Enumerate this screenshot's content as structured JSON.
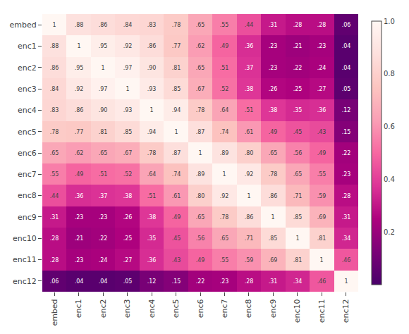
{
  "chart_data": {
    "type": "heatmap",
    "categories": [
      "embed",
      "enc1",
      "enc2",
      "enc3",
      "enc4",
      "enc5",
      "enc6",
      "enc7",
      "enc8",
      "enc9",
      "enc10",
      "enc11",
      "enc12"
    ],
    "values": [
      [
        1.0,
        0.88,
        0.86,
        0.84,
        0.83,
        0.78,
        0.65,
        0.55,
        0.44,
        0.31,
        0.28,
        0.28,
        0.06
      ],
      [
        0.88,
        1.0,
        0.95,
        0.92,
        0.86,
        0.77,
        0.62,
        0.49,
        0.36,
        0.23,
        0.21,
        0.23,
        0.04
      ],
      [
        0.86,
        0.95,
        1.0,
        0.97,
        0.9,
        0.81,
        0.65,
        0.51,
        0.37,
        0.23,
        0.22,
        0.24,
        0.04
      ],
      [
        0.84,
        0.92,
        0.97,
        1.0,
        0.93,
        0.85,
        0.67,
        0.52,
        0.38,
        0.26,
        0.25,
        0.27,
        0.05
      ],
      [
        0.83,
        0.86,
        0.9,
        0.93,
        1.0,
        0.94,
        0.78,
        0.64,
        0.51,
        0.38,
        0.35,
        0.36,
        0.12
      ],
      [
        0.78,
        0.77,
        0.81,
        0.85,
        0.94,
        1.0,
        0.87,
        0.74,
        0.61,
        0.49,
        0.45,
        0.43,
        0.15
      ],
      [
        0.65,
        0.62,
        0.65,
        0.67,
        0.78,
        0.87,
        1.0,
        0.89,
        0.8,
        0.65,
        0.56,
        0.49,
        0.22
      ],
      [
        0.55,
        0.49,
        0.51,
        0.52,
        0.64,
        0.74,
        0.89,
        1.0,
        0.92,
        0.78,
        0.65,
        0.55,
        0.23
      ],
      [
        0.44,
        0.36,
        0.37,
        0.38,
        0.51,
        0.61,
        0.8,
        0.92,
        1.0,
        0.86,
        0.71,
        0.59,
        0.28
      ],
      [
        0.31,
        0.23,
        0.23,
        0.26,
        0.38,
        0.49,
        0.65,
        0.78,
        0.86,
        1.0,
        0.85,
        0.69,
        0.31
      ],
      [
        0.28,
        0.21,
        0.22,
        0.25,
        0.35,
        0.45,
        0.56,
        0.65,
        0.71,
        0.85,
        1.0,
        0.81,
        0.34
      ],
      [
        0.28,
        0.23,
        0.24,
        0.27,
        0.36,
        0.43,
        0.49,
        0.55,
        0.59,
        0.69,
        0.81,
        1.0,
        0.46
      ],
      [
        0.06,
        0.04,
        0.04,
        0.05,
        0.12,
        0.15,
        0.22,
        0.23,
        0.28,
        0.31,
        0.34,
        0.46,
        1.0
      ]
    ],
    "value_labels": [
      [
        "1",
        ".88",
        ".86",
        ".84",
        ".83",
        ".78",
        ".65",
        ".55",
        ".44",
        ".31",
        ".28",
        ".28",
        ".06"
      ],
      [
        ".88",
        "1",
        ".95",
        ".92",
        ".86",
        ".77",
        ".62",
        ".49",
        ".36",
        ".23",
        ".21",
        ".23",
        ".04"
      ],
      [
        ".86",
        ".95",
        "1",
        ".97",
        ".90",
        ".81",
        ".65",
        ".51",
        ".37",
        ".23",
        ".22",
        ".24",
        ".04"
      ],
      [
        ".84",
        ".92",
        ".97",
        "1",
        ".93",
        ".85",
        ".67",
        ".52",
        ".38",
        ".26",
        ".25",
        ".27",
        ".05"
      ],
      [
        ".83",
        ".86",
        ".90",
        ".93",
        "1",
        ".94",
        ".78",
        ".64",
        ".51",
        ".38",
        ".35",
        ".36",
        ".12"
      ],
      [
        ".78",
        ".77",
        ".81",
        ".85",
        ".94",
        "1",
        ".87",
        ".74",
        ".61",
        ".49",
        ".45",
        ".43",
        ".15"
      ],
      [
        ".65",
        ".62",
        ".65",
        ".67",
        ".78",
        ".87",
        "1",
        ".89",
        ".80",
        ".65",
        ".56",
        ".49",
        ".22"
      ],
      [
        ".55",
        ".49",
        ".51",
        ".52",
        ".64",
        ".74",
        ".89",
        "1",
        ".92",
        ".78",
        ".65",
        ".55",
        ".23"
      ],
      [
        ".44",
        ".36",
        ".37",
        ".38",
        ".51",
        ".61",
        ".80",
        ".92",
        "1",
        ".86",
        ".71",
        ".59",
        ".28"
      ],
      [
        ".31",
        ".23",
        ".23",
        ".26",
        ".38",
        ".49",
        ".65",
        ".78",
        ".86",
        "1",
        ".85",
        ".69",
        ".31"
      ],
      [
        ".28",
        ".21",
        ".22",
        ".25",
        ".35",
        ".45",
        ".56",
        ".65",
        ".71",
        ".85",
        "1",
        ".81",
        ".34"
      ],
      [
        ".28",
        ".23",
        ".24",
        ".27",
        ".36",
        ".43",
        ".49",
        ".55",
        ".59",
        ".69",
        ".81",
        "1",
        ".46"
      ],
      [
        ".06",
        ".04",
        ".04",
        ".05",
        ".12",
        ".15",
        ".22",
        ".23",
        ".28",
        ".31",
        ".34",
        ".46",
        "1"
      ]
    ],
    "data_labels": true,
    "color": "RdPu_r",
    "colorbar_range": [
      0.0,
      1.0
    ],
    "colorbar_ticks": [
      0.2,
      0.4,
      0.6,
      0.8,
      {
        "value": 1.0,
        "label": "1.0"
      }
    ],
    "grid": false
  }
}
